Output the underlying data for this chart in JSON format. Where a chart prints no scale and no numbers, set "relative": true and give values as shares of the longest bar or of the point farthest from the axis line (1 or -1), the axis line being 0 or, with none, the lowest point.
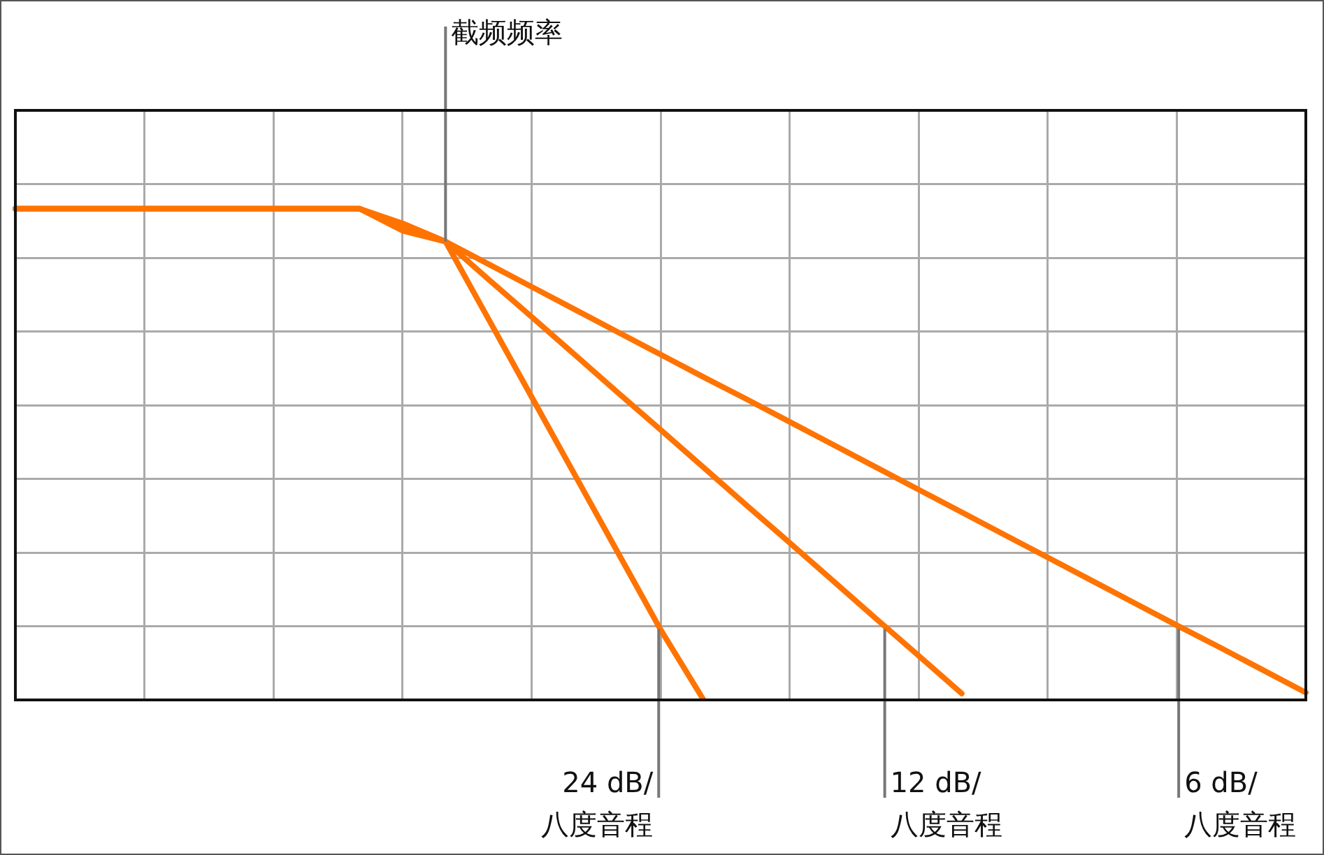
{
  "chart_data": {
    "type": "line",
    "relative": true,
    "grid": true,
    "legend": false,
    "marker": "none",
    "line_style": "solid",
    "categories": [
      null,
      null,
      null,
      null,
      null,
      null,
      null,
      null,
      null,
      null,
      null,
      null,
      null,
      null,
      null,
      null,
      null,
      null,
      null,
      null,
      null,
      null,
      null,
      null,
      null,
      null,
      null,
      null,
      null,
      null,
      null
    ],
    "series": [
      {
        "name": "24 dB/\n八度音程",
        "color": "#ff7300",
        "values": [
          1,
          1,
          1,
          1,
          1,
          1,
          1,
          1,
          1,
          0.955,
          0.933,
          0.775,
          0.617,
          0.459,
          0.301,
          0.143,
          0,
          null,
          null,
          null,
          null,
          null,
          null,
          null,
          null,
          null,
          null,
          null,
          null,
          null,
          null
        ]
      },
      {
        "name": "12 dB/\n八度音程",
        "color": "#ff7300",
        "values": [
          1,
          1,
          1,
          1,
          1,
          1,
          1,
          1,
          1,
          0.96,
          0.933,
          0.856,
          0.78,
          0.703,
          0.626,
          0.55,
          0.473,
          0.396,
          0.32,
          0.243,
          0.166,
          0.09,
          0.013,
          null,
          null,
          null,
          null,
          null,
          null,
          null,
          null
        ]
      },
      {
        "name": "6 dB/\n八度音程",
        "color": "#ff7300",
        "values": [
          1,
          1,
          1,
          1,
          1,
          1,
          1,
          1,
          1,
          0.97,
          0.933,
          0.887,
          0.841,
          0.795,
          0.749,
          0.703,
          0.657,
          0.612,
          0.566,
          0.52,
          0.474,
          0.428,
          0.382,
          0.336,
          0.29,
          0.244,
          0.198,
          0.152,
          0.107,
          0.061,
          0.015
        ]
      }
    ],
    "annotations": [
      "截频频率"
    ]
  }
}
